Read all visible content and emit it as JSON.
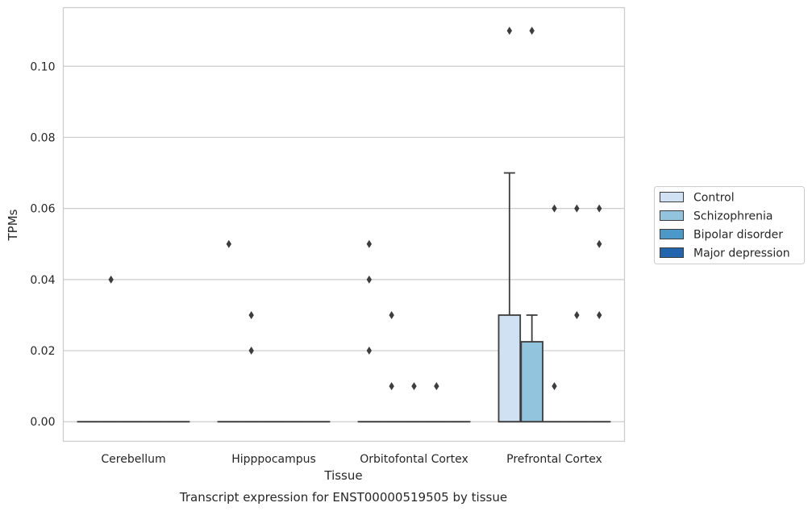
{
  "caption": "Transcript expression for ENST00000519505 by tissue",
  "chart_data": {
    "type": "box",
    "xlabel": "Tissue",
    "ylabel": "TPMs",
    "ylim": [
      -0.0055,
      0.1165
    ],
    "yticks": [
      0.0,
      0.02,
      0.04,
      0.06,
      0.08,
      0.1
    ],
    "ytick_labels": [
      "0.00",
      "0.02",
      "0.04",
      "0.06",
      "0.08",
      "0.10"
    ],
    "grid": "horizontal",
    "legend_position": "right-outside",
    "categories": [
      "Cerebellum",
      "Hipppocampus",
      "Orbitofontal Cortex",
      "Prefrontal Cortex"
    ],
    "series": [
      {
        "name": "Control",
        "color": "#cfe1f2",
        "boxes": [
          {
            "q1": 0,
            "median": 0,
            "q3": 0,
            "whisker_low": 0,
            "whisker_high": 0,
            "outliers": []
          },
          {
            "q1": 0,
            "median": 0,
            "q3": 0,
            "whisker_low": 0,
            "whisker_high": 0,
            "outliers": [
              0.05
            ]
          },
          {
            "q1": 0,
            "median": 0,
            "q3": 0,
            "whisker_low": 0,
            "whisker_high": 0,
            "outliers": [
              0.05,
              0.04,
              0.02
            ]
          },
          {
            "q1": 0,
            "median": 0,
            "q3": 0.03,
            "whisker_low": 0,
            "whisker_high": 0.07,
            "outliers": [
              0.11
            ]
          }
        ]
      },
      {
        "name": "Schizophrenia",
        "color": "#93c4de",
        "boxes": [
          {
            "q1": 0,
            "median": 0,
            "q3": 0,
            "whisker_low": 0,
            "whisker_high": 0,
            "outliers": [
              0.04
            ]
          },
          {
            "q1": 0,
            "median": 0,
            "q3": 0,
            "whisker_low": 0,
            "whisker_high": 0,
            "outliers": [
              0.03,
              0.02
            ]
          },
          {
            "q1": 0,
            "median": 0,
            "q3": 0,
            "whisker_low": 0,
            "whisker_high": 0,
            "outliers": [
              0.03,
              0.01
            ]
          },
          {
            "q1": 0,
            "median": 0,
            "q3": 0.0225,
            "whisker_low": 0,
            "whisker_high": 0.03,
            "outliers": [
              0.11
            ]
          }
        ]
      },
      {
        "name": "Bipolar disorder",
        "color": "#4b98c9",
        "boxes": [
          {
            "q1": 0,
            "median": 0,
            "q3": 0,
            "whisker_low": 0,
            "whisker_high": 0,
            "outliers": []
          },
          {
            "q1": 0,
            "median": 0,
            "q3": 0,
            "whisker_low": 0,
            "whisker_high": 0,
            "outliers": []
          },
          {
            "q1": 0,
            "median": 0,
            "q3": 0,
            "whisker_low": 0,
            "whisker_high": 0,
            "outliers": [
              0.01
            ]
          },
          {
            "q1": 0,
            "median": 0,
            "q3": 0,
            "whisker_low": 0,
            "whisker_high": 0,
            "outliers": [
              0.06,
              0.01
            ]
          }
        ]
      },
      {
        "name": "Major depression",
        "color": "#2166ac",
        "boxes": [
          {
            "q1": 0,
            "median": 0,
            "q3": 0,
            "whisker_low": 0,
            "whisker_high": 0,
            "outliers": []
          },
          {
            "q1": 0,
            "median": 0,
            "q3": 0,
            "whisker_low": 0,
            "whisker_high": 0,
            "outliers": []
          },
          {
            "q1": 0,
            "median": 0,
            "q3": 0,
            "whisker_low": 0,
            "whisker_high": 0,
            "outliers": [
              0.01
            ]
          },
          {
            "q1": 0,
            "median": 0,
            "q3": 0,
            "whisker_low": 0,
            "whisker_high": 0,
            "outliers": [
              0.06,
              0.03
            ]
          }
        ]
      },
      {
        "name": "",
        "color": "#2166ac",
        "boxes": [
          {
            "q1": 0,
            "median": 0,
            "q3": 0,
            "whisker_low": 0,
            "whisker_high": 0,
            "outliers": []
          },
          {
            "q1": 0,
            "median": 0,
            "q3": 0,
            "whisker_low": 0,
            "whisker_high": 0,
            "outliers": []
          },
          {
            "q1": 0,
            "median": 0,
            "q3": 0,
            "whisker_low": 0,
            "whisker_high": 0,
            "outliers": []
          },
          {
            "q1": 0,
            "median": 0,
            "q3": 0,
            "whisker_low": 0,
            "whisker_high": 0,
            "outliers": [
              0.06,
              0.05,
              0.03
            ]
          }
        ]
      }
    ]
  }
}
